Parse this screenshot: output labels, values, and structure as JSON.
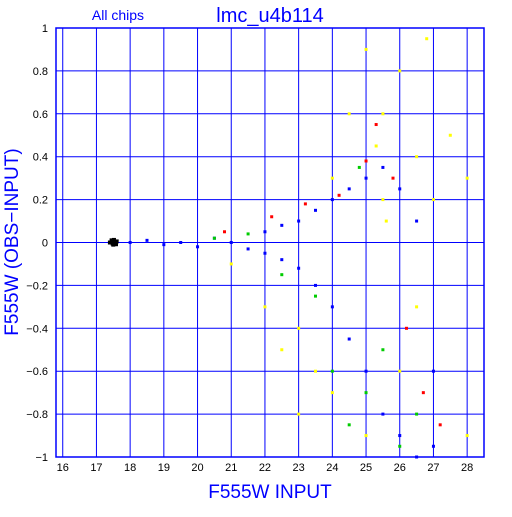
{
  "chart_data": {
    "type": "scatter",
    "panel_label": "All chips",
    "title": "lmc_u4b114",
    "xlabel": "F555W INPUT",
    "ylabel": "F555W (OBS−INPUT)",
    "xlim": [
      15.8,
      28.5
    ],
    "ylim": [
      -1,
      1
    ],
    "xticks": [
      16,
      17,
      18,
      19,
      20,
      21,
      22,
      23,
      24,
      25,
      26,
      27,
      28
    ],
    "yticks": [
      -1,
      -0.8,
      -0.6,
      -0.4,
      -0.2,
      0,
      0.2,
      0.4,
      0.6,
      0.8,
      1
    ],
    "xtick_labels": [
      "16",
      "17",
      "18",
      "19",
      "20",
      "21",
      "22",
      "23",
      "24",
      "25",
      "26",
      "27",
      "28"
    ],
    "ytick_labels": [
      "−1",
      "−0.8",
      "−0.6",
      "−0.4",
      "−0.2",
      "0",
      "0.2",
      "0.4",
      "0.6",
      "0.8",
      "1"
    ],
    "grid": true,
    "colors": {
      "frame": "#0000ff",
      "grid": "#0000ff",
      "text": "#0000ff",
      "black": "#000000",
      "blue": "#0000ff",
      "yellow": "#ffff00",
      "green": "#00cc00",
      "red": "#ff0000"
    },
    "series": [
      {
        "color": "black",
        "points": [
          [
            17.4,
            0.0
          ],
          [
            17.45,
            0.01
          ],
          [
            17.5,
            -0.01
          ],
          [
            17.55,
            0.0
          ],
          [
            17.6,
            0.005
          ],
          [
            17.48,
            -0.005
          ],
          [
            17.52,
            0.012
          ],
          [
            17.58,
            -0.008
          ]
        ]
      },
      {
        "color": "blue",
        "points": [
          [
            18.0,
            0.0
          ],
          [
            18.5,
            0.01
          ],
          [
            19.0,
            -0.01
          ],
          [
            19.5,
            0.0
          ],
          [
            20.0,
            -0.02
          ],
          [
            20.5,
            0.02
          ],
          [
            21.0,
            0.0
          ],
          [
            21.5,
            -0.03
          ],
          [
            22.0,
            0.05
          ],
          [
            22.0,
            -0.05
          ],
          [
            22.5,
            0.08
          ],
          [
            22.5,
            -0.08
          ],
          [
            23.0,
            0.1
          ],
          [
            23.0,
            -0.12
          ],
          [
            23.5,
            0.15
          ],
          [
            23.5,
            -0.2
          ],
          [
            24.0,
            0.2
          ],
          [
            24.0,
            -0.3
          ],
          [
            24.5,
            0.25
          ],
          [
            24.5,
            -0.45
          ],
          [
            25.0,
            0.3
          ],
          [
            25.0,
            -0.6
          ],
          [
            25.5,
            0.35
          ],
          [
            25.5,
            -0.8
          ],
          [
            26.0,
            0.25
          ],
          [
            26.0,
            -0.9
          ],
          [
            26.5,
            0.1
          ],
          [
            26.5,
            -1.0
          ],
          [
            27.0,
            -0.6
          ],
          [
            27.0,
            -0.95
          ]
        ]
      },
      {
        "color": "yellow",
        "points": [
          [
            21.0,
            -0.1
          ],
          [
            22.0,
            -0.3
          ],
          [
            22.5,
            -0.5
          ],
          [
            23.0,
            -0.4
          ],
          [
            23.0,
            -0.8
          ],
          [
            23.5,
            -0.6
          ],
          [
            24.0,
            -0.7
          ],
          [
            24.0,
            0.3
          ],
          [
            24.5,
            0.6
          ],
          [
            25.0,
            0.9
          ],
          [
            25.0,
            -0.9
          ],
          [
            25.5,
            0.6
          ],
          [
            25.5,
            0.2
          ],
          [
            26.0,
            0.8
          ],
          [
            26.0,
            -0.6
          ],
          [
            26.5,
            0.4
          ],
          [
            26.5,
            -0.3
          ],
          [
            27.0,
            0.2
          ],
          [
            27.5,
            0.5
          ],
          [
            28.0,
            0.3
          ],
          [
            28.0,
            -0.9
          ],
          [
            26.8,
            0.95
          ],
          [
            25.3,
            0.45
          ],
          [
            25.6,
            0.1
          ]
        ]
      },
      {
        "color": "green",
        "points": [
          [
            20.5,
            0.02
          ],
          [
            21.5,
            0.04
          ],
          [
            22.5,
            -0.15
          ],
          [
            23.5,
            -0.25
          ],
          [
            24.0,
            -0.6
          ],
          [
            24.5,
            -0.85
          ],
          [
            25.0,
            -0.7
          ],
          [
            25.5,
            -0.5
          ],
          [
            26.0,
            -0.95
          ],
          [
            26.5,
            -0.8
          ],
          [
            24.8,
            0.35
          ]
        ]
      },
      {
        "color": "red",
        "points": [
          [
            20.8,
            0.05
          ],
          [
            22.2,
            0.12
          ],
          [
            23.2,
            0.18
          ],
          [
            24.2,
            0.22
          ],
          [
            25.0,
            0.38
          ],
          [
            25.3,
            0.55
          ],
          [
            25.8,
            0.3
          ],
          [
            26.2,
            -0.4
          ],
          [
            26.7,
            -0.7
          ],
          [
            27.2,
            -0.85
          ]
        ]
      }
    ]
  }
}
